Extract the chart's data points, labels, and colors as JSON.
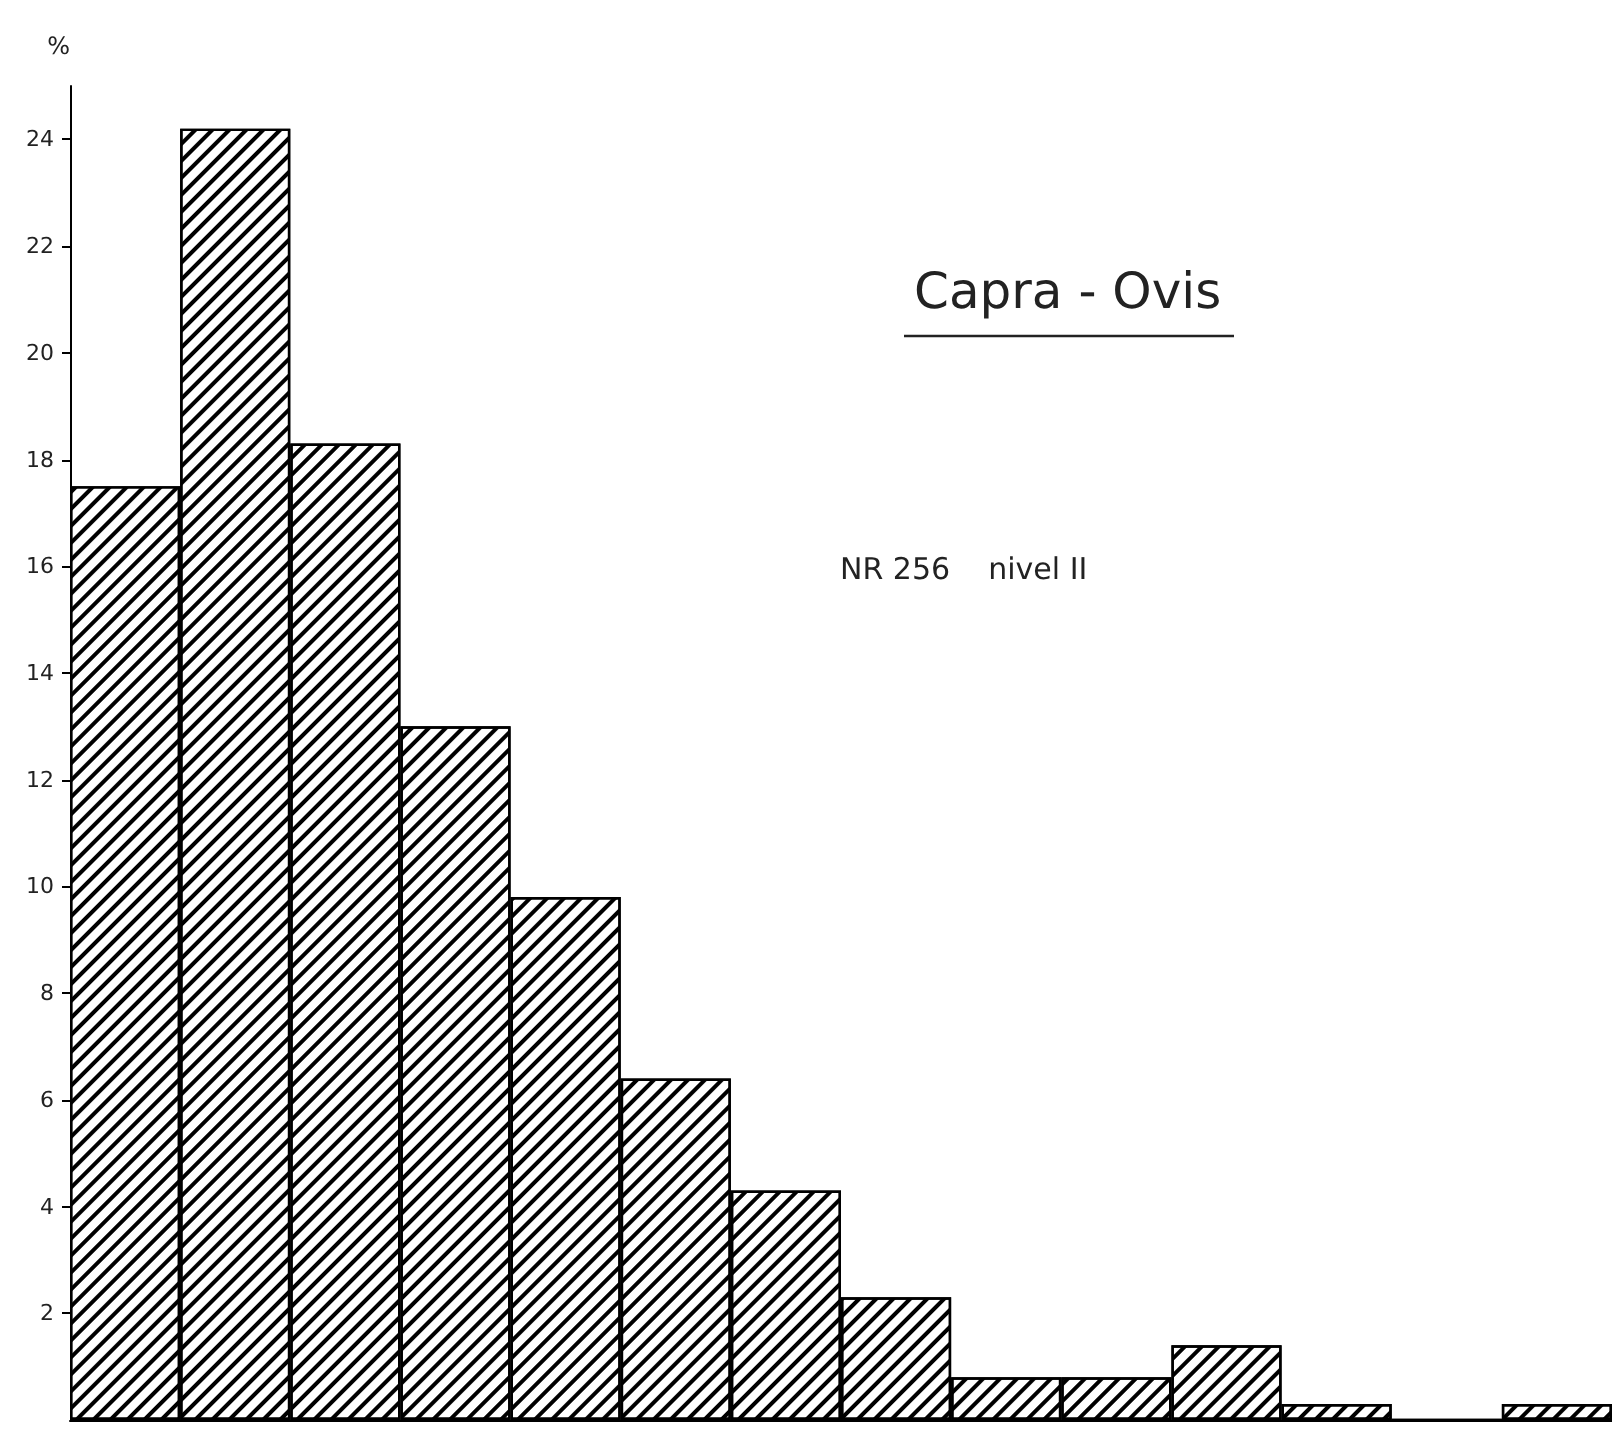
{
  "chart_data": {
    "type": "bar",
    "title": "Capra - Ovis",
    "ylabel": "%",
    "annotations": [
      "NR 256    nivel II"
    ],
    "categories": [
      null,
      null,
      null,
      null,
      null,
      null,
      null,
      null,
      null,
      null,
      null,
      null,
      null,
      null
    ],
    "values": [
      17.5,
      24.2,
      18.3,
      13,
      9.8,
      6.4,
      4.3,
      2.3,
      0.8,
      0.8,
      1.4,
      0.3,
      0,
      0.3
    ],
    "color": "#000000",
    "ylim": [
      0,
      25
    ],
    "yticks": [
      2,
      4,
      6,
      8,
      10,
      12,
      14,
      16,
      18,
      20,
      22,
      24
    ],
    "grid": false
  }
}
